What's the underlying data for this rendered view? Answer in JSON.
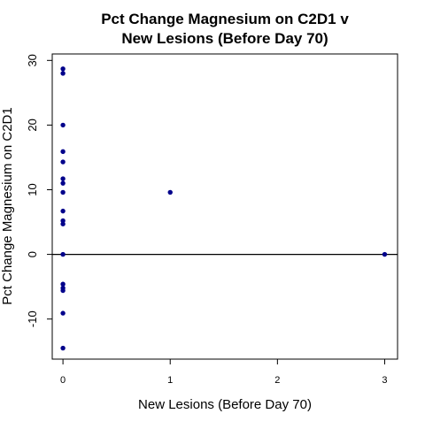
{
  "chart_data": {
    "type": "scatter",
    "title_lines": [
      "Pct Change Magnesium on C2D1 v",
      "New Lesions (Before Day 70)"
    ],
    "xlabel": "New Lesions (Before Day 70)",
    "ylabel": "Pct Change Magnesium on C2D1",
    "xlim": [
      -0.1,
      3.12
    ],
    "ylim": [
      -16.2,
      31
    ],
    "x_ticks": [
      0,
      1,
      2,
      3
    ],
    "x_tick_labels": [
      "0",
      "1",
      "2",
      "3"
    ],
    "y_ticks": [
      -10,
      0,
      10,
      20,
      30
    ],
    "y_tick_labels": [
      "-10",
      "0",
      "10",
      "20",
      "30"
    ],
    "reference_line_y": 0,
    "grid": false,
    "point_color": "#00008B",
    "points": [
      {
        "x": 0,
        "y": 28.7
      },
      {
        "x": 0,
        "y": 28.0
      },
      {
        "x": 0,
        "y": 20.0
      },
      {
        "x": 0,
        "y": 15.9
      },
      {
        "x": 0,
        "y": 14.3
      },
      {
        "x": 0,
        "y": 11.7
      },
      {
        "x": 0,
        "y": 11.0
      },
      {
        "x": 0,
        "y": 9.6
      },
      {
        "x": 0,
        "y": 6.7
      },
      {
        "x": 0,
        "y": 5.2
      },
      {
        "x": 0,
        "y": 4.7
      },
      {
        "x": 0,
        "y": 0.0
      },
      {
        "x": 0,
        "y": -4.6
      },
      {
        "x": 0,
        "y": -5.2
      },
      {
        "x": 0,
        "y": -5.6
      },
      {
        "x": 0,
        "y": -9.1
      },
      {
        "x": 0,
        "y": -14.5
      },
      {
        "x": 1,
        "y": 9.6
      },
      {
        "x": 3,
        "y": 0.0
      }
    ]
  }
}
